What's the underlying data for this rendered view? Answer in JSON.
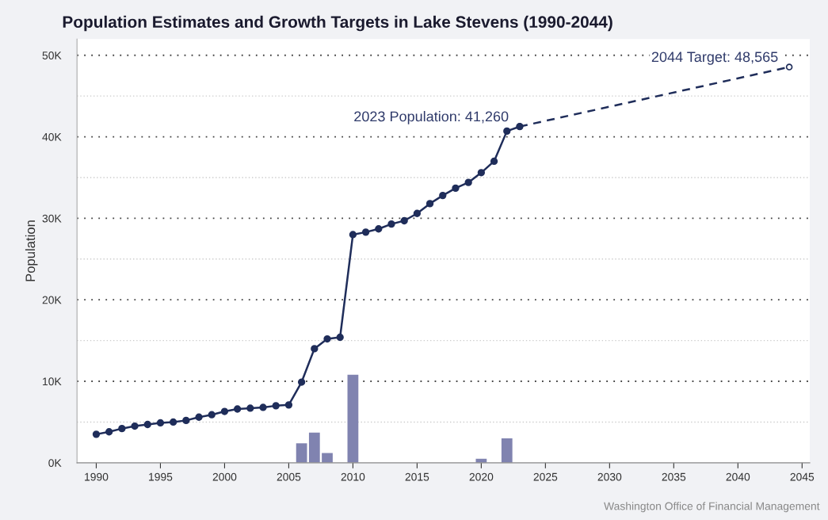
{
  "chart_data": {
    "type": "line",
    "title": "Population Estimates and Growth Targets in Lake Stevens (1990-2044)",
    "ylabel": "Population",
    "x": [
      1990,
      1991,
      1992,
      1993,
      1994,
      1995,
      1996,
      1997,
      1998,
      1999,
      2000,
      2001,
      2002,
      2003,
      2004,
      2005,
      2006,
      2007,
      2008,
      2009,
      2010,
      2011,
      2012,
      2013,
      2014,
      2015,
      2016,
      2017,
      2018,
      2019,
      2020,
      2021,
      2022,
      2023
    ],
    "series": [
      {
        "type": "bar",
        "color": "#8083b0",
        "x": [
          2006,
          2007,
          2008,
          2010,
          2020,
          2022
        ],
        "values": [
          2400,
          3700,
          1200,
          10800,
          500,
          3000
        ]
      },
      {
        "color": "#1f2d5a",
        "line_style": "dashed",
        "marker": "circle",
        "x": [
          2023,
          2044
        ],
        "values": [
          41260,
          48565
        ]
      },
      {
        "color": "#1f2d5a",
        "line_style": "solid",
        "marker": "circle",
        "values": [
          3500,
          3800,
          4200,
          4500,
          4700,
          4900,
          5000,
          5200,
          5600,
          5900,
          6300,
          6600,
          6700,
          6800,
          7000,
          7100,
          9900,
          14000,
          15200,
          15400,
          28000,
          28300,
          28700,
          29300,
          29700,
          30600,
          31800,
          32800,
          33700,
          34400,
          35600,
          37000,
          40700,
          41260
        ]
      }
    ],
    "annotations": [
      {
        "text": "2023 Population: 41,260",
        "x": 2023,
        "y": 41260
      },
      {
        "text": "2044 Target: 48,565",
        "x": 2044,
        "y": 48565
      },
      "Washington Office of Financial Management"
    ],
    "xlim": [
      1988.5,
      2045.6
    ],
    "xticks": [
      1990,
      1995,
      2000,
      2005,
      2010,
      2015,
      2020,
      2025,
      2030,
      2035,
      2040,
      2045
    ],
    "ylim": [
      0,
      52000
    ],
    "yticks": [
      {
        "value": 0,
        "label": "0K"
      },
      {
        "value": 5000,
        "label": null
      },
      {
        "value": 10000,
        "label": "10K"
      },
      {
        "value": 15000,
        "label": null
      },
      {
        "value": 20000,
        "label": "20K"
      },
      {
        "value": 25000,
        "label": null
      },
      {
        "value": 30000,
        "label": "30K"
      },
      {
        "value": 35000,
        "label": null
      },
      {
        "value": 40000,
        "label": "40K"
      },
      {
        "value": 45000,
        "label": null
      },
      {
        "value": 50000,
        "label": "50K"
      }
    ],
    "grid": "y",
    "legend": false
  }
}
